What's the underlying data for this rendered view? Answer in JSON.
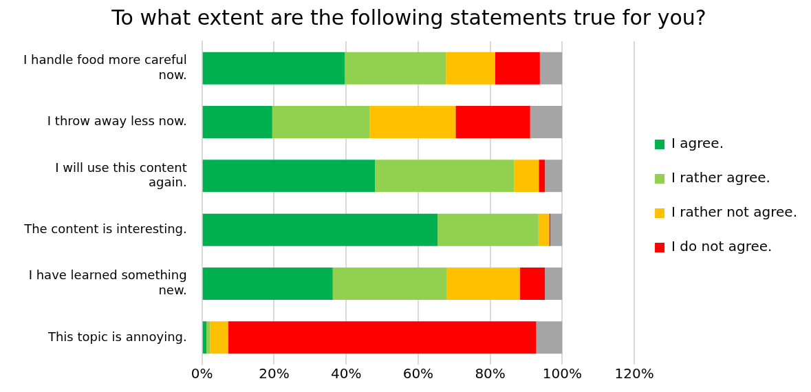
{
  "chart_data": {
    "type": "bar",
    "orientation": "horizontal",
    "stacked": true,
    "title": "To what extent are the following statements true for you?",
    "categories": [
      "I handle food more careful now.",
      "I throw away less now.",
      "I will use this content again.",
      "The content is interesting.",
      "I have learned something new.",
      "This topic is annoying."
    ],
    "series": [
      {
        "name": "I agree.",
        "color": "#00b050",
        "values": [
          39.6,
          19.5,
          48.0,
          65.4,
          36.3,
          1.2
        ]
      },
      {
        "name": "I rather agree.",
        "color": "#92d050",
        "values": [
          28.1,
          27.0,
          38.6,
          28.0,
          31.7,
          1.0
        ]
      },
      {
        "name": "I rather not agree.",
        "color": "#ffc000",
        "values": [
          13.7,
          23.9,
          6.9,
          3.0,
          20.3,
          5.1
        ]
      },
      {
        "name": "I do not agree.",
        "color": "#ff0000",
        "values": [
          12.4,
          20.7,
          1.7,
          0.3,
          6.9,
          85.5
        ]
      },
      {
        "color": "#a5a5a5",
        "values": [
          6.2,
          8.9,
          4.8,
          3.3,
          4.8,
          7.2
        ]
      }
    ],
    "xlim": [
      0,
      120
    ],
    "xticks": [
      {
        "value": 0,
        "label": "0%"
      },
      {
        "value": 20,
        "label": "20%"
      },
      {
        "value": 40,
        "label": "40%"
      },
      {
        "value": 60,
        "label": "60%"
      },
      {
        "value": 80,
        "label": "80%"
      },
      {
        "value": 100,
        "label": "100%"
      },
      {
        "value": 120,
        "label": "120%"
      }
    ],
    "grid": "x",
    "legend": "right"
  }
}
